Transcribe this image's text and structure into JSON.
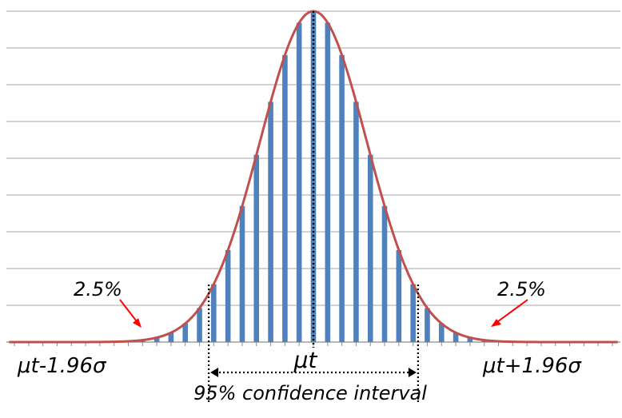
{
  "chart_data": {
    "type": "bar",
    "title": "",
    "xlabel": "",
    "ylabel": "",
    "grid": true,
    "legend": "none",
    "x": [
      -5.6,
      -5.333,
      -5.067,
      -4.8,
      -4.533,
      -4.267,
      -4.0,
      -3.733,
      -3.467,
      -3.2,
      -2.933,
      -2.667,
      -2.4,
      -2.133,
      -1.867,
      -1.6,
      -1.333,
      -1.067,
      -0.8,
      -0.533,
      -0.267,
      0.0,
      0.267,
      0.533,
      0.8,
      1.067,
      1.333,
      1.6,
      1.867,
      2.133,
      2.4,
      2.667,
      2.933,
      3.2,
      3.467,
      3.733,
      4.0,
      4.267,
      4.533,
      4.8,
      5.067,
      5.333,
      5.6
    ],
    "ylim": [
      0,
      1
    ],
    "series": [
      {
        "type": "bar",
        "color": "#4f81bd"
      },
      {
        "type": "line",
        "color": "#c0504d"
      }
    ],
    "annotations": {
      "mean_label": "μt",
      "lower_label": "μt-1.96σ",
      "upper_label": "μt+1.96σ",
      "left_tail": "2.5%",
      "right_tail": "2.5%",
      "interval_label": "95% confidence interval",
      "lower_bound_x": -1.96,
      "upper_bound_x": 1.96,
      "mean_x": 0
    },
    "colors": {
      "grid": "#a6a6a6",
      "arrow": "#ff0000",
      "dashed": "#000000"
    }
  }
}
